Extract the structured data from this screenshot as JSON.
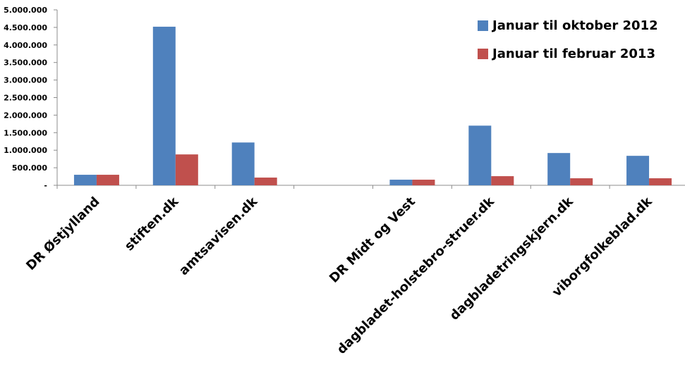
{
  "chart_data": {
    "type": "bar",
    "categories": [
      "DR Østjylland",
      "stiften.dk",
      "amtsavisen.dk",
      "",
      "DR Midt og Vest",
      "dagbladet-holstebro-struer.dk",
      "dagbladetringskjern.dk",
      "viborgfolkeblad.dk"
    ],
    "series": [
      {
        "name": "Januar til oktober 2012",
        "color": "#4f81bd",
        "values": [
          300000,
          4520000,
          1220000,
          0,
          160000,
          1700000,
          920000,
          840000
        ]
      },
      {
        "name": "Januar til februar 2013",
        "color": "#c0504d",
        "values": [
          300000,
          880000,
          220000,
          0,
          160000,
          260000,
          200000,
          200000
        ]
      }
    ],
    "ylim": [
      0,
      5000000
    ],
    "yticks": [
      0,
      500000,
      1000000,
      1500000,
      2000000,
      2500000,
      3000000,
      3500000,
      4000000,
      4500000,
      5000000
    ],
    "ytick_labels": [
      "-",
      "500.000",
      "1.000.000",
      "1.500.000",
      "2.000.000",
      "2.500.000",
      "3.000.000",
      "3.500.000",
      "4.000.000",
      "4.500.000",
      "5.000.000"
    ],
    "legend_position": "top-right",
    "grid": false,
    "title": "",
    "xlabel": "",
    "ylabel": ""
  }
}
